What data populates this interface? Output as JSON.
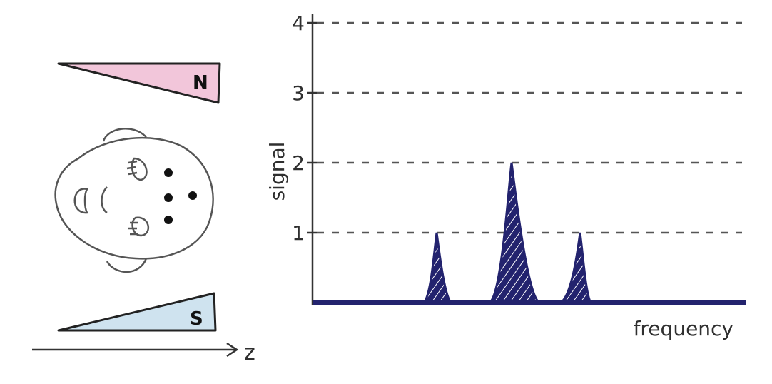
{
  "magnet": {
    "north_label": "N",
    "south_label": "S",
    "north_color": "#f2c6da",
    "south_color": "#cfe3ef"
  },
  "axis_z": {
    "label": "z"
  },
  "head": {
    "outline_icon": "head-top-view",
    "dot_count": 4
  },
  "chart_data": {
    "type": "area",
    "xlabel": "frequency",
    "ylabel": "signal",
    "yticks": [
      1,
      2,
      3,
      4
    ],
    "ylim": [
      0,
      4
    ],
    "grid": "dashed",
    "fill_color": "#23236e",
    "peaks": [
      {
        "value": 1
      },
      {
        "value": 2
      },
      {
        "value": 1
      }
    ]
  }
}
